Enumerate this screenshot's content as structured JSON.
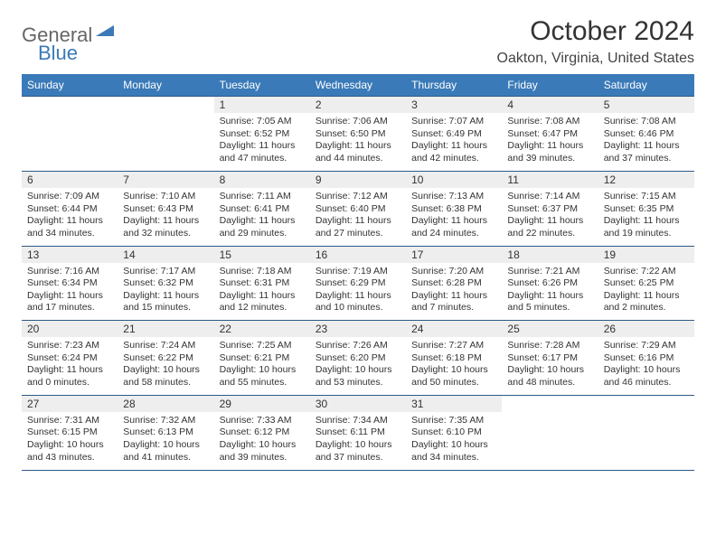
{
  "logo": {
    "text1": "General",
    "text2": "Blue"
  },
  "title": "October 2024",
  "location": "Oakton, Virginia, United States",
  "colors": {
    "header_bg": "#3a7ab8",
    "header_text": "#ffffff",
    "daynum_bg": "#eeeeee",
    "border": "#2c5a8a",
    "body_text": "#333333"
  },
  "weekdays": [
    "Sunday",
    "Monday",
    "Tuesday",
    "Wednesday",
    "Thursday",
    "Friday",
    "Saturday"
  ],
  "weeks": [
    [
      null,
      null,
      {
        "d": "1",
        "rise": "7:05 AM",
        "set": "6:52 PM",
        "day": "11 hours and 47 minutes."
      },
      {
        "d": "2",
        "rise": "7:06 AM",
        "set": "6:50 PM",
        "day": "11 hours and 44 minutes."
      },
      {
        "d": "3",
        "rise": "7:07 AM",
        "set": "6:49 PM",
        "day": "11 hours and 42 minutes."
      },
      {
        "d": "4",
        "rise": "7:08 AM",
        "set": "6:47 PM",
        "day": "11 hours and 39 minutes."
      },
      {
        "d": "5",
        "rise": "7:08 AM",
        "set": "6:46 PM",
        "day": "11 hours and 37 minutes."
      }
    ],
    [
      {
        "d": "6",
        "rise": "7:09 AM",
        "set": "6:44 PM",
        "day": "11 hours and 34 minutes."
      },
      {
        "d": "7",
        "rise": "7:10 AM",
        "set": "6:43 PM",
        "day": "11 hours and 32 minutes."
      },
      {
        "d": "8",
        "rise": "7:11 AM",
        "set": "6:41 PM",
        "day": "11 hours and 29 minutes."
      },
      {
        "d": "9",
        "rise": "7:12 AM",
        "set": "6:40 PM",
        "day": "11 hours and 27 minutes."
      },
      {
        "d": "10",
        "rise": "7:13 AM",
        "set": "6:38 PM",
        "day": "11 hours and 24 minutes."
      },
      {
        "d": "11",
        "rise": "7:14 AM",
        "set": "6:37 PM",
        "day": "11 hours and 22 minutes."
      },
      {
        "d": "12",
        "rise": "7:15 AM",
        "set": "6:35 PM",
        "day": "11 hours and 19 minutes."
      }
    ],
    [
      {
        "d": "13",
        "rise": "7:16 AM",
        "set": "6:34 PM",
        "day": "11 hours and 17 minutes."
      },
      {
        "d": "14",
        "rise": "7:17 AM",
        "set": "6:32 PM",
        "day": "11 hours and 15 minutes."
      },
      {
        "d": "15",
        "rise": "7:18 AM",
        "set": "6:31 PM",
        "day": "11 hours and 12 minutes."
      },
      {
        "d": "16",
        "rise": "7:19 AM",
        "set": "6:29 PM",
        "day": "11 hours and 10 minutes."
      },
      {
        "d": "17",
        "rise": "7:20 AM",
        "set": "6:28 PM",
        "day": "11 hours and 7 minutes."
      },
      {
        "d": "18",
        "rise": "7:21 AM",
        "set": "6:26 PM",
        "day": "11 hours and 5 minutes."
      },
      {
        "d": "19",
        "rise": "7:22 AM",
        "set": "6:25 PM",
        "day": "11 hours and 2 minutes."
      }
    ],
    [
      {
        "d": "20",
        "rise": "7:23 AM",
        "set": "6:24 PM",
        "day": "11 hours and 0 minutes."
      },
      {
        "d": "21",
        "rise": "7:24 AM",
        "set": "6:22 PM",
        "day": "10 hours and 58 minutes."
      },
      {
        "d": "22",
        "rise": "7:25 AM",
        "set": "6:21 PM",
        "day": "10 hours and 55 minutes."
      },
      {
        "d": "23",
        "rise": "7:26 AM",
        "set": "6:20 PM",
        "day": "10 hours and 53 minutes."
      },
      {
        "d": "24",
        "rise": "7:27 AM",
        "set": "6:18 PM",
        "day": "10 hours and 50 minutes."
      },
      {
        "d": "25",
        "rise": "7:28 AM",
        "set": "6:17 PM",
        "day": "10 hours and 48 minutes."
      },
      {
        "d": "26",
        "rise": "7:29 AM",
        "set": "6:16 PM",
        "day": "10 hours and 46 minutes."
      }
    ],
    [
      {
        "d": "27",
        "rise": "7:31 AM",
        "set": "6:15 PM",
        "day": "10 hours and 43 minutes."
      },
      {
        "d": "28",
        "rise": "7:32 AM",
        "set": "6:13 PM",
        "day": "10 hours and 41 minutes."
      },
      {
        "d": "29",
        "rise": "7:33 AM",
        "set": "6:12 PM",
        "day": "10 hours and 39 minutes."
      },
      {
        "d": "30",
        "rise": "7:34 AM",
        "set": "6:11 PM",
        "day": "10 hours and 37 minutes."
      },
      {
        "d": "31",
        "rise": "7:35 AM",
        "set": "6:10 PM",
        "day": "10 hours and 34 minutes."
      },
      null,
      null
    ]
  ]
}
